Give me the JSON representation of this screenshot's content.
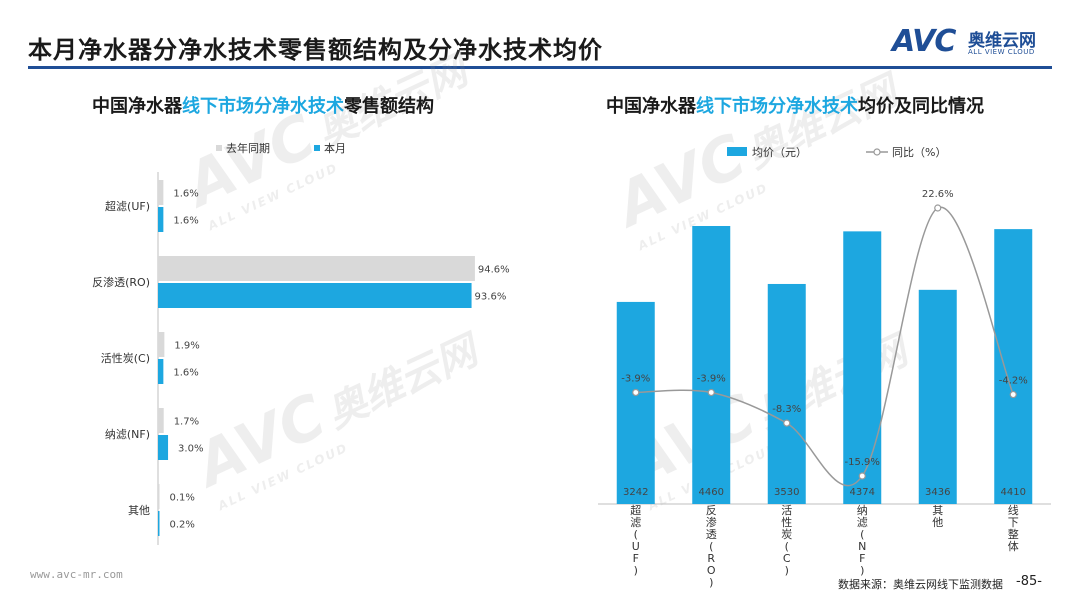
{
  "page": {
    "title": "本月净水器分净水技术零售额结构及分净水技术均价",
    "logo": {
      "mark": "AVC",
      "cn": "奥维云网",
      "en": "ALL VIEW CLOUD"
    },
    "footer": {
      "url": "www.avc-mr.com",
      "source": "数据来源：奥维云网线下监测数据",
      "page_no": "-85-"
    },
    "watermark": {
      "mark": "AVC",
      "cn": "奥维云网",
      "en": "ALL VIEW CLOUD"
    },
    "colors": {
      "primary": "#1f4e96",
      "current": "#1da7e0",
      "last_year": "#d9d9d9",
      "line": "#999999"
    }
  },
  "left_panel": {
    "title_prefix": "中国净水器",
    "title_highlight": "线下市场分净水技术",
    "title_suffix": "零售额结构"
  },
  "right_panel": {
    "title_prefix": "中国净水器",
    "title_highlight": "线下市场分净水技术",
    "title_suffix": "均价及同比情况"
  },
  "chart_data": [
    {
      "type": "bar",
      "orientation": "horizontal",
      "categories": [
        "超滤(UF)",
        "反渗透(RO)",
        "活性炭(C)",
        "纳滤(NF)",
        "其他"
      ],
      "series": [
        {
          "name": "去年同期",
          "values": [
            1.6,
            94.6,
            1.9,
            1.7,
            0.1
          ],
          "labels": [
            "1.6%",
            "94.6%",
            "1.9%",
            "1.7%",
            "0.1%"
          ],
          "color": "#d9d9d9"
        },
        {
          "name": "本月",
          "values": [
            1.6,
            93.6,
            1.6,
            3.0,
            0.2
          ],
          "labels": [
            "1.6%",
            "93.6%",
            "1.6%",
            "3.0%",
            "0.2%"
          ],
          "color": "#1da7e0"
        }
      ],
      "legend_position": "top",
      "grid": false
    },
    {
      "type": "bar",
      "secondary_type": "line",
      "categories": [
        "超滤(UF)",
        "反渗透(RO)",
        "活性炭(C)",
        "纳滤(NF)",
        "其他",
        "线下整体"
      ],
      "series": [
        {
          "name": "均价（元）",
          "values": [
            3242,
            4460,
            3530,
            4374,
            3436,
            4410
          ],
          "labels": [
            "3242",
            "4460",
            "3530",
            "4374",
            "3436",
            "4410"
          ],
          "color": "#1da7e0"
        },
        {
          "name": "同比（%）",
          "values": [
            -3.9,
            -3.9,
            -8.3,
            -15.9,
            22.6,
            -4.2
          ],
          "labels": [
            "-3.9%",
            "-3.9%",
            "-8.3%",
            "-15.9%",
            "22.6%",
            "-4.2%"
          ],
          "color": "#999999",
          "smooth": true
        }
      ],
      "legend_position": "top",
      "grid": false
    }
  ]
}
